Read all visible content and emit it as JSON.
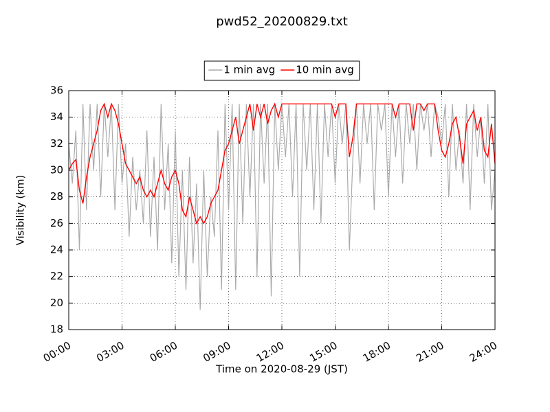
{
  "chart_data": {
    "type": "line",
    "title": "pwd52_20200829.txt",
    "xlabel": "Time on 2020-08-29 (JST)",
    "ylabel": "Visibility (km)",
    "x": [
      0,
      0.2,
      0.4,
      0.6,
      0.8,
      1,
      1.2,
      1.4,
      1.6,
      1.8,
      2,
      2.2,
      2.4,
      2.6,
      2.8,
      3,
      3.2,
      3.4,
      3.6,
      3.8,
      4,
      4.2,
      4.4,
      4.6,
      4.8,
      5,
      5.2,
      5.4,
      5.6,
      5.8,
      6,
      6.2,
      6.4,
      6.6,
      6.8,
      7,
      7.2,
      7.4,
      7.6,
      7.8,
      8,
      8.2,
      8.4,
      8.6,
      8.8,
      9,
      9.2,
      9.4,
      9.6,
      9.8,
      10,
      10.2,
      10.4,
      10.6,
      10.8,
      11,
      11.2,
      11.4,
      11.6,
      11.8,
      12,
      12.2,
      12.4,
      12.6,
      12.8,
      13,
      13.2,
      13.4,
      13.6,
      13.8,
      14,
      14.2,
      14.4,
      14.6,
      14.8,
      15,
      15.2,
      15.4,
      15.6,
      15.8,
      16,
      16.2,
      16.4,
      16.6,
      16.8,
      17,
      17.2,
      17.4,
      17.6,
      17.8,
      18,
      18.2,
      18.4,
      18.6,
      18.8,
      19,
      19.2,
      19.4,
      19.6,
      19.8,
      20,
      20.2,
      20.4,
      20.6,
      20.8,
      21,
      21.2,
      21.4,
      21.6,
      21.8,
      22,
      22.2,
      22.4,
      22.6,
      22.8,
      23,
      23.2,
      23.4,
      23.6,
      23.8,
      24
    ],
    "series": [
      {
        "name": "1 min avg",
        "color": "#aaaaaa",
        "values": [
          32,
          29,
          33,
          24,
          35,
          27,
          35,
          30,
          35,
          28,
          35,
          31,
          35,
          27,
          35,
          29,
          32,
          25,
          31,
          27,
          30,
          26,
          33,
          25,
          31,
          24,
          35,
          27,
          32,
          23,
          33,
          22,
          30,
          21,
          31,
          23,
          29,
          19.5,
          30,
          22,
          28,
          25,
          33,
          21,
          35,
          27,
          35,
          21,
          35,
          26,
          35,
          28,
          35,
          22,
          35,
          29,
          35,
          20.5,
          35,
          30,
          35,
          31,
          35,
          28,
          35,
          22,
          35,
          30,
          35,
          27,
          35,
          26,
          35,
          31,
          35,
          29,
          35,
          32,
          35,
          24,
          31,
          35,
          29,
          35,
          32,
          35,
          27,
          35,
          33,
          35,
          28,
          35,
          31,
          35,
          29,
          35,
          32,
          35,
          30,
          35,
          33,
          35,
          31,
          35,
          34,
          32,
          35,
          28,
          35,
          30,
          33,
          29,
          35,
          27,
          35,
          31,
          34,
          29,
          35,
          27,
          30
        ]
      },
      {
        "name": "10 min avg",
        "color": "#ff0000",
        "values": [
          30,
          30.5,
          30.8,
          28.5,
          27.5,
          29.5,
          31,
          32,
          33,
          34.5,
          35,
          34,
          35,
          34.5,
          33.5,
          32,
          30.5,
          30,
          29.5,
          29,
          29.5,
          28.5,
          28,
          28.5,
          28,
          29,
          30,
          29,
          28.5,
          29.5,
          30,
          29,
          27,
          26.5,
          28,
          27,
          26,
          26.5,
          26,
          26.5,
          27.5,
          28,
          28.5,
          30,
          31.5,
          32,
          33,
          34,
          32,
          33,
          34,
          35,
          33,
          35,
          34,
          35,
          33.5,
          34.5,
          35,
          34,
          35,
          35,
          35,
          35,
          35,
          35,
          35,
          35,
          35,
          35,
          35,
          35,
          35,
          35,
          35,
          34,
          35,
          35,
          35,
          31,
          32.5,
          35,
          35,
          35,
          35,
          35,
          35,
          35,
          35,
          35,
          35,
          35,
          34,
          35,
          35,
          35,
          35,
          33,
          35,
          35,
          34.5,
          35,
          35,
          35,
          33,
          31.5,
          31,
          32,
          33.5,
          34,
          32.5,
          30.5,
          33.5,
          34,
          34.5,
          33,
          34,
          31.5,
          31,
          33.5,
          30.5
        ]
      }
    ],
    "xlim": [
      0,
      24
    ],
    "xticks": [
      {
        "value": 0,
        "label": "00:00"
      },
      {
        "value": 3,
        "label": "03:00"
      },
      {
        "value": 6,
        "label": "06:00"
      },
      {
        "value": 9,
        "label": "09:00"
      },
      {
        "value": 12,
        "label": "12:00"
      },
      {
        "value": 15,
        "label": "15:00"
      },
      {
        "value": 18,
        "label": "18:00"
      },
      {
        "value": 21,
        "label": "21:00"
      },
      {
        "value": 24,
        "label": "24:00"
      }
    ],
    "ylim": [
      18,
      36
    ],
    "yticks": [
      18,
      20,
      22,
      24,
      26,
      28,
      30,
      32,
      34,
      36
    ],
    "grid": true,
    "legend": "top"
  }
}
